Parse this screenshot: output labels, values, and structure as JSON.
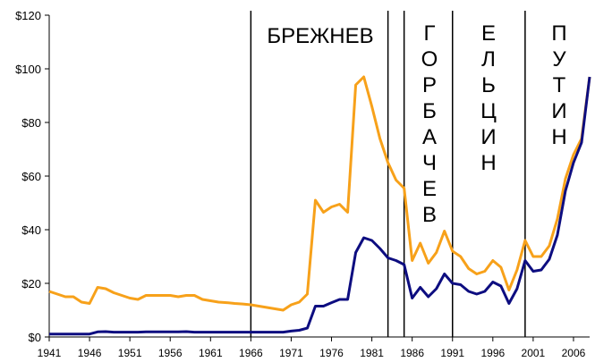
{
  "chart_data": {
    "type": "line",
    "x": [
      1941,
      1942,
      1943,
      1944,
      1945,
      1946,
      1947,
      1948,
      1949,
      1950,
      1951,
      1952,
      1953,
      1954,
      1955,
      1956,
      1957,
      1958,
      1959,
      1960,
      1961,
      1962,
      1963,
      1964,
      1965,
      1966,
      1967,
      1968,
      1969,
      1970,
      1971,
      1972,
      1973,
      1974,
      1975,
      1976,
      1977,
      1978,
      1979,
      1980,
      1981,
      1982,
      1983,
      1984,
      1985,
      1986,
      1987,
      1988,
      1989,
      1990,
      1991,
      1992,
      1993,
      1994,
      1995,
      1996,
      1997,
      1998,
      1999,
      2000,
      2001,
      2002,
      2003,
      2004,
      2005,
      2006,
      2007,
      2008
    ],
    "series": [
      {
        "color": "#f7a11a",
        "values": [
          17,
          16,
          15,
          15,
          13,
          12.5,
          18.5,
          18,
          16.5,
          15.5,
          14.5,
          14,
          15.5,
          15.5,
          15.5,
          15.5,
          15,
          15.5,
          15.5,
          14,
          13.5,
          13,
          12.8,
          12.5,
          12.3,
          12,
          11.5,
          11,
          10.5,
          10,
          12,
          13,
          16,
          51,
          46.5,
          48.5,
          49.5,
          46.5,
          94,
          97,
          86,
          74,
          65,
          58.5,
          55.5,
          28.5,
          35,
          27.5,
          31.5,
          39.5,
          32,
          30,
          25.5,
          23.5,
          24.5,
          28.5,
          26,
          17.5,
          25,
          36,
          30,
          30,
          34,
          44,
          59,
          68,
          74,
          97
        ]
      },
      {
        "color": "#0d0d80",
        "values": [
          1.1,
          1.1,
          1.1,
          1.1,
          1.1,
          1.1,
          1.9,
          2,
          1.8,
          1.8,
          1.8,
          1.8,
          1.9,
          1.9,
          1.9,
          1.9,
          1.9,
          2,
          1.8,
          1.8,
          1.8,
          1.8,
          1.8,
          1.8,
          1.8,
          1.8,
          1.8,
          1.8,
          1.8,
          1.8,
          2.2,
          2.5,
          3.3,
          11.5,
          11.5,
          12.8,
          14,
          14,
          31.5,
          37,
          36,
          33,
          29.5,
          28.5,
          27,
          14.5,
          18.5,
          15,
          18,
          23.5,
          20,
          19.5,
          17,
          16,
          17,
          20.5,
          19,
          12.5,
          18,
          28.5,
          24.5,
          25,
          29,
          38,
          54.5,
          65,
          72.5,
          97
        ]
      }
    ],
    "xlim": [
      1941,
      2008
    ],
    "xticks": [
      1941,
      1946,
      1951,
      1956,
      1961,
      1966,
      1971,
      1976,
      1981,
      1986,
      1991,
      1996,
      2001,
      2006
    ],
    "ylim": [
      0,
      120
    ],
    "yticks": [
      {
        "value": 0,
        "label": "$0"
      },
      {
        "value": 20,
        "label": "$20"
      },
      {
        "value": 40,
        "label": "$40"
      },
      {
        "value": 60,
        "label": "$60"
      },
      {
        "value": 80,
        "label": "$80"
      },
      {
        "value": 100,
        "label": "$100"
      },
      {
        "value": 120,
        "label": "$120"
      }
    ],
    "vlines": [
      1966,
      1983,
      1985,
      1991,
      2000
    ],
    "annotations": [
      {
        "text": "БРЕЖНЕВ",
        "orientation": "horizontal"
      },
      {
        "text": "ГОРБАЧЕВ",
        "orientation": "vertical"
      },
      {
        "text": "ЕЛЬЦИН",
        "orientation": "vertical"
      },
      {
        "text": "ПУТИН",
        "orientation": "vertical"
      }
    ]
  }
}
